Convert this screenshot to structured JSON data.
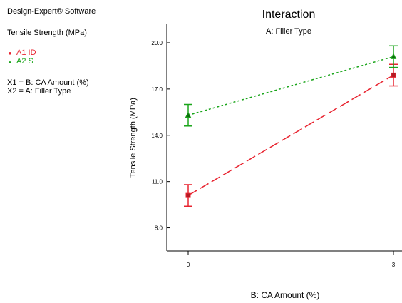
{
  "software_label": "Design-Expert® Software",
  "response_label": "Tensile Strength (MPa)",
  "legend": [
    {
      "label": "A1 ID",
      "color": "#e8232f",
      "marker": "square-icon"
    },
    {
      "label": "A2 S",
      "color": "#1aa51a",
      "marker": "triangle-icon"
    }
  ],
  "factor_x1": "X1 = B: CA Amount (%)",
  "factor_x2": "X2 = A: Filler Type",
  "chart_data": {
    "type": "line",
    "title": "Interaction",
    "subtitle": "A: Filler Type",
    "xlabel": "B: CA Amount (%)",
    "ylabel": "Tensile Strength (MPa)",
    "x": [
      0,
      3
    ],
    "x_tick_labels": [
      "0",
      "3"
    ],
    "xlim": [
      0,
      3
    ],
    "ylim": [
      6.5,
      21.2
    ],
    "y_ticks": [
      8.0,
      11.0,
      14.0,
      17.0,
      20.0
    ],
    "y_tick_labels": [
      "8.0",
      "11.0",
      "14.0",
      "17.0",
      "20.0"
    ],
    "grid": false,
    "series": [
      {
        "name": "A1 ID",
        "values": [
          10.1,
          17.9
        ],
        "error_low": [
          9.4,
          17.2
        ],
        "error_high": [
          10.8,
          18.6
        ],
        "color": "#e8232f",
        "marker": "square",
        "line_style": "long-dash"
      },
      {
        "name": "A2 S",
        "values": [
          15.3,
          19.1
        ],
        "error_low": [
          14.6,
          18.4
        ],
        "error_high": [
          16.0,
          19.8
        ],
        "color": "#1aa51a",
        "marker": "triangle",
        "line_style": "dotted"
      }
    ]
  }
}
